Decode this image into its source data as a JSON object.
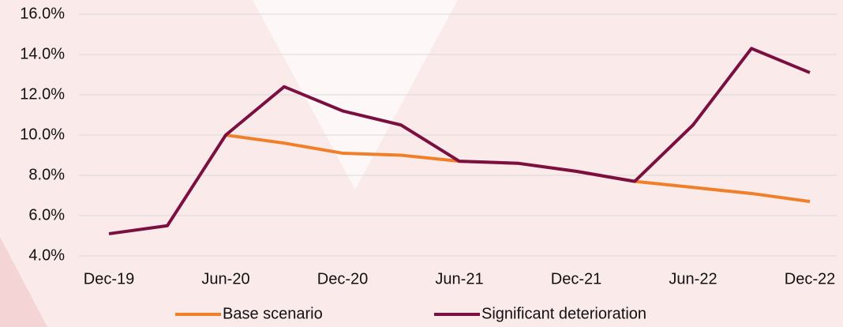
{
  "chart_data": {
    "type": "line",
    "categories": [
      "Dec-19",
      null,
      "Jun-20",
      null,
      "Dec-20",
      null,
      "Jun-21",
      null,
      "Dec-21",
      null,
      "Jun-22",
      null,
      "Dec-22"
    ],
    "series": [
      {
        "name": "Base scenario",
        "color": "#f07f2a",
        "values": [
          null,
          null,
          10.0,
          9.6,
          9.1,
          9.0,
          8.7,
          8.6,
          8.2,
          7.7,
          7.4,
          7.1,
          6.7
        ]
      },
      {
        "name": "Significant deterioration",
        "color": "#7b1040",
        "values": [
          5.1,
          5.5,
          10.0,
          12.4,
          11.2,
          10.5,
          8.7,
          8.6,
          8.2,
          7.7,
          10.5,
          14.3,
          13.1
        ]
      }
    ],
    "ylim": [
      4,
      16
    ],
    "yticks": [
      {
        "value": 4,
        "label": "4.0%"
      },
      {
        "value": 6,
        "label": "6.0%"
      },
      {
        "value": 8,
        "label": "8.0%"
      },
      {
        "value": 10,
        "label": "10.0%"
      },
      {
        "value": 12,
        "label": "12.0%"
      },
      {
        "value": 14,
        "label": "14.0%"
      },
      {
        "value": 16,
        "label": "16.0%"
      }
    ],
    "grid": true,
    "legend": "bottom"
  }
}
